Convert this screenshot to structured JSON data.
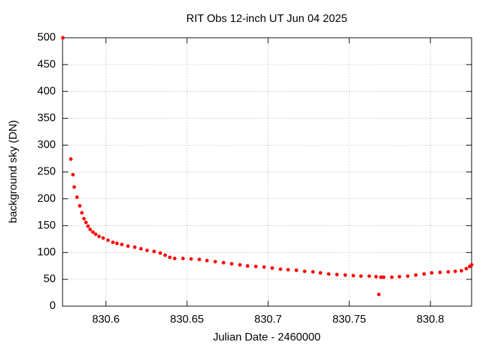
{
  "chart_data": {
    "type": "scatter",
    "title": "RIT Obs 12-inch UT Jun 04 2025",
    "x_label": "Julian Date - 2460000",
    "y_label": "background sky (DN)",
    "color": "#ff0000",
    "grid": true,
    "xlim": [
      830.5733,
      830.8254
    ],
    "ylim": [
      0,
      500
    ],
    "xticks": [
      830.6,
      830.65,
      830.7,
      830.75,
      830.8
    ],
    "yticks": [
      0,
      50,
      100,
      150,
      200,
      250,
      300,
      350,
      400,
      450,
      500
    ],
    "x": [
      830.5735,
      830.5784,
      830.5797,
      830.5805,
      830.5822,
      830.5839,
      830.5852,
      830.5865,
      830.5877,
      830.589,
      830.5903,
      830.592,
      830.5937,
      830.5958,
      830.5983,
      830.6013,
      830.6043,
      830.6068,
      830.6098,
      830.6136,
      830.6178,
      830.6216,
      830.6254,
      830.6297,
      830.6335,
      830.6365,
      830.6394,
      830.6424,
      830.6475,
      830.6525,
      830.6576,
      830.6623,
      830.6674,
      830.6725,
      830.6775,
      830.6826,
      830.6873,
      830.6924,
      830.6975,
      830.7025,
      830.7076,
      830.7123,
      830.7174,
      830.7225,
      830.7276,
      830.7322,
      830.7373,
      830.7424,
      830.7475,
      830.7525,
      830.7572,
      830.7623,
      830.7665,
      830.7682,
      830.7695,
      830.7712,
      830.7762,
      830.7809,
      830.786,
      830.791,
      830.7961,
      830.8008,
      830.8059,
      830.811,
      830.8153,
      830.8191,
      830.8221,
      830.8242,
      830.8254
    ],
    "values": [
      500,
      274,
      245,
      222,
      203,
      187,
      174,
      163,
      156,
      149,
      143,
      138,
      134,
      130,
      127,
      123,
      119,
      117,
      115,
      112,
      110,
      107,
      104,
      102,
      99,
      95,
      91,
      89,
      89,
      88,
      87,
      85,
      83,
      81,
      79,
      77,
      75,
      74,
      73,
      71,
      69,
      68,
      67,
      65,
      64,
      62,
      60,
      59,
      58,
      57,
      56,
      56,
      55,
      22,
      54,
      54,
      54,
      55,
      56,
      58,
      60,
      62,
      63,
      64,
      65,
      66,
      70,
      74,
      77
    ]
  }
}
